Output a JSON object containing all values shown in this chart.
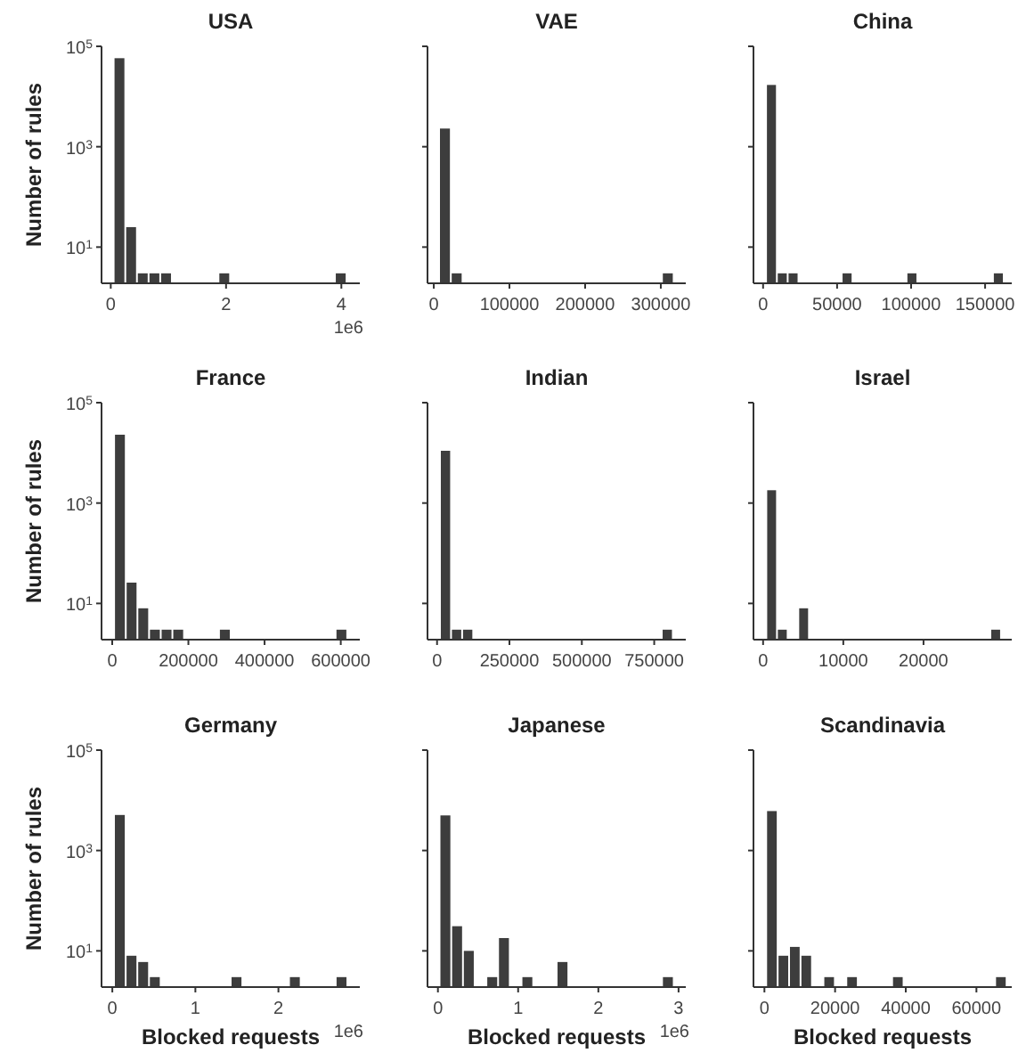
{
  "chart_data": [
    {
      "type": "histogram",
      "title": "USA",
      "ylabel": "Number of rules",
      "log": "y",
      "grid": false,
      "color": "#3d3d3d",
      "bins": [
        0.05,
        0.252,
        0.454,
        0.656,
        0.858,
        1.06,
        1.262,
        1.464,
        1.666,
        1.868,
        2.07,
        2.272,
        2.474,
        2.676,
        2.878,
        3.08,
        3.282,
        3.484,
        3.686,
        3.888,
        4.09
      ],
      "values": [
        58000,
        25,
        3,
        3,
        3,
        null,
        null,
        null,
        null,
        3,
        null,
        null,
        null,
        null,
        null,
        null,
        null,
        null,
        null,
        3
      ],
      "xlim": [
        -0.16,
        4.32
      ],
      "xticks": [
        0,
        2,
        4
      ],
      "ylim": [
        1.9,
        100000
      ],
      "yticks": [
        {
          "value": 10,
          "label": "10$^{1}$"
        },
        {
          "value": 1000,
          "label": "10$^{3}$"
        },
        {
          "value": 100000,
          "label": "10$^{5}$"
        }
      ],
      "annotations": [
        "1e6"
      ]
    },
    {
      "type": "histogram",
      "title": "VAE",
      "log": "y",
      "grid": false,
      "tick_labels": "x",
      "color": "#3d3d3d",
      "bins": [
        7000,
        22500,
        38000,
        53500,
        69000,
        84500,
        100000,
        115500,
        131000,
        146500,
        162000,
        177500,
        193000,
        208500,
        224000,
        239500,
        255000,
        270500,
        286000,
        301500,
        317000
      ],
      "values": [
        2300,
        3,
        null,
        null,
        null,
        null,
        null,
        null,
        null,
        null,
        null,
        null,
        null,
        null,
        null,
        null,
        null,
        null,
        null,
        3
      ],
      "xlim": [
        -8300,
        333000
      ],
      "xticks": [
        0,
        100000,
        200000,
        300000
      ],
      "ylim": [
        1.9,
        100000
      ],
      "yticks": [
        {
          "value": 10,
          "label": null
        },
        {
          "value": 1000,
          "label": null
        },
        {
          "value": 100000,
          "label": null
        }
      ]
    },
    {
      "type": "histogram",
      "title": "China",
      "log": "y",
      "grid": false,
      "tick_labels": "x",
      "color": "#3d3d3d",
      "bins": [
        2000,
        9300,
        16600,
        23900,
        31200,
        38500,
        45800,
        53100,
        60400,
        67700,
        75000,
        82300,
        89600,
        96900,
        104200,
        111500,
        118800,
        126100,
        133400,
        140700,
        148000,
        155300,
        162600
      ],
      "values": [
        17000,
        3,
        3,
        null,
        null,
        null,
        null,
        3,
        null,
        null,
        null,
        null,
        null,
        3,
        null,
        null,
        null,
        null,
        null,
        null,
        null,
        3
      ],
      "xlim": [
        -6500,
        168000
      ],
      "xticks": [
        0,
        50000,
        100000,
        150000
      ],
      "ylim": [
        1.9,
        100000
      ],
      "yticks": [
        {
          "value": 10,
          "label": null
        },
        {
          "value": 1000,
          "label": null
        },
        {
          "value": 100000,
          "label": null
        }
      ]
    },
    {
      "type": "histogram",
      "title": "France",
      "ylabel": "Number of rules",
      "log": "y",
      "grid": false,
      "color": "#3d3d3d",
      "bins": [
        5000,
        35600,
        66200,
        96800,
        127400,
        158000,
        188600,
        219200,
        249800,
        280400,
        311000,
        341600,
        372200,
        402800,
        433400,
        464000,
        494600,
        525200,
        555800,
        586400,
        617000
      ],
      "values": [
        23000,
        26,
        8,
        3,
        3,
        3,
        null,
        null,
        null,
        3,
        null,
        null,
        null,
        null,
        null,
        null,
        null,
        null,
        null,
        3
      ],
      "xlim": [
        -28000,
        650000
      ],
      "xticks": [
        0,
        200000,
        400000,
        600000
      ],
      "ylim": [
        1.9,
        100000
      ],
      "yticks": [
        {
          "value": 10,
          "label": "10$^{1}$"
        },
        {
          "value": 1000,
          "label": "10$^{3}$"
        },
        {
          "value": 100000,
          "label": "10$^{5}$"
        }
      ]
    },
    {
      "type": "histogram",
      "title": "Indian",
      "log": "y",
      "grid": false,
      "tick_labels": "x",
      "color": "#3d3d3d",
      "bins": [
        10000,
        48300,
        86600,
        124900,
        163200,
        201500,
        239800,
        278100,
        316400,
        354700,
        393000,
        431300,
        469600,
        507900,
        546200,
        584500,
        622800,
        661100,
        699400,
        737700,
        776000,
        814300
      ],
      "values": [
        11000,
        3,
        3,
        null,
        null,
        null,
        null,
        null,
        null,
        null,
        null,
        null,
        null,
        null,
        null,
        null,
        null,
        null,
        null,
        null,
        3
      ],
      "xlim": [
        -33000,
        859000
      ],
      "xticks": [
        0,
        250000,
        500000,
        750000
      ],
      "ylim": [
        1.9,
        100000
      ],
      "yticks": [
        {
          "value": 10,
          "label": null
        },
        {
          "value": 1000,
          "label": null
        },
        {
          "value": 100000,
          "label": null
        }
      ]
    },
    {
      "type": "histogram",
      "title": "Israel",
      "log": "y",
      "grid": false,
      "tick_labels": "x",
      "color": "#3d3d3d",
      "bins": [
        400,
        1730,
        3060,
        4390,
        5720,
        7050,
        8380,
        9710,
        11040,
        12370,
        13700,
        15030,
        16360,
        17690,
        19020,
        20350,
        21680,
        23010,
        24340,
        25670,
        27000,
        28330,
        29660
      ],
      "values": [
        1800,
        3,
        null,
        8,
        null,
        null,
        null,
        null,
        null,
        null,
        null,
        null,
        null,
        null,
        null,
        null,
        null,
        null,
        null,
        null,
        null,
        3
      ],
      "xlim": [
        -1200,
        31000
      ],
      "xticks": [
        0,
        10000,
        20000
      ],
      "ylim": [
        1.9,
        100000
      ],
      "yticks": [
        {
          "value": 10,
          "label": null
        },
        {
          "value": 1000,
          "label": null
        },
        {
          "value": 100000,
          "label": null
        }
      ]
    },
    {
      "type": "histogram",
      "title": "Germany",
      "ylabel": "Number of rules",
      "xlabel": "Blocked requests",
      "log": "y",
      "grid": false,
      "color": "#3d3d3d",
      "bins": [
        0.02,
        0.1605,
        0.301,
        0.4415,
        0.582,
        0.7225,
        0.863,
        1.0035,
        1.144,
        1.2845,
        1.425,
        1.5655,
        1.706,
        1.8465,
        1.987,
        2.1275,
        2.268,
        2.4085,
        2.549,
        2.6895,
        2.83
      ],
      "values": [
        5100,
        8,
        6,
        3,
        null,
        null,
        null,
        null,
        null,
        null,
        3,
        null,
        null,
        null,
        null,
        3,
        null,
        null,
        null,
        3
      ],
      "xlim": [
        -0.13,
        2.98
      ],
      "xticks": [
        0,
        1,
        2
      ],
      "ylim": [
        1.9,
        100000
      ],
      "yticks": [
        {
          "value": 10,
          "label": "10$^{1}$"
        },
        {
          "value": 1000,
          "label": "10$^{3}$"
        },
        {
          "value": 100000,
          "label": "10$^{5}$"
        }
      ],
      "annotations": [
        "1e6"
      ]
    },
    {
      "type": "histogram",
      "title": "Japanese",
      "xlabel": "Blocked requests",
      "log": "y",
      "grid": false,
      "tick_labels": "x",
      "color": "#3d3d3d",
      "bins": [
        0.02,
        0.166,
        0.312,
        0.458,
        0.604,
        0.75,
        0.896,
        1.042,
        1.188,
        1.334,
        1.48,
        1.626,
        1.772,
        1.918,
        2.064,
        2.21,
        2.356,
        2.502,
        2.648,
        2.794,
        2.94
      ],
      "values": [
        5000,
        31,
        10,
        null,
        3,
        18,
        null,
        3,
        null,
        null,
        6,
        null,
        null,
        null,
        null,
        null,
        null,
        null,
        null,
        3
      ],
      "xlim": [
        -0.13,
        3.09
      ],
      "xticks": [
        0,
        1,
        2,
        3
      ],
      "ylim": [
        1.9,
        100000
      ],
      "yticks": [
        {
          "value": 10,
          "label": null
        },
        {
          "value": 1000,
          "label": null
        },
        {
          "value": 100000,
          "label": null
        }
      ],
      "annotations": [
        "1e6"
      ]
    },
    {
      "type": "histogram",
      "title": "Scandinavia",
      "xlabel": "Blocked requests",
      "log": "y",
      "grid": false,
      "tick_labels": "x",
      "color": "#3d3d3d",
      "bins": [
        500,
        3740,
        6980,
        10220,
        13460,
        16700,
        19940,
        23180,
        26420,
        29660,
        32900,
        36140,
        39380,
        42620,
        45860,
        49100,
        52340,
        55580,
        58820,
        62060,
        65300,
        68540
      ],
      "values": [
        6100,
        8,
        12,
        8,
        null,
        3,
        null,
        3,
        null,
        null,
        null,
        3,
        null,
        null,
        null,
        null,
        null,
        null,
        null,
        null,
        3
      ],
      "xlim": [
        -3100,
        70000
      ],
      "xticks": [
        0,
        20000,
        40000,
        60000
      ],
      "ylim": [
        1.9,
        100000
      ],
      "yticks": [
        {
          "value": 10,
          "label": null
        },
        {
          "value": 1000,
          "label": null
        },
        {
          "value": 100000,
          "label": null
        }
      ]
    }
  ]
}
